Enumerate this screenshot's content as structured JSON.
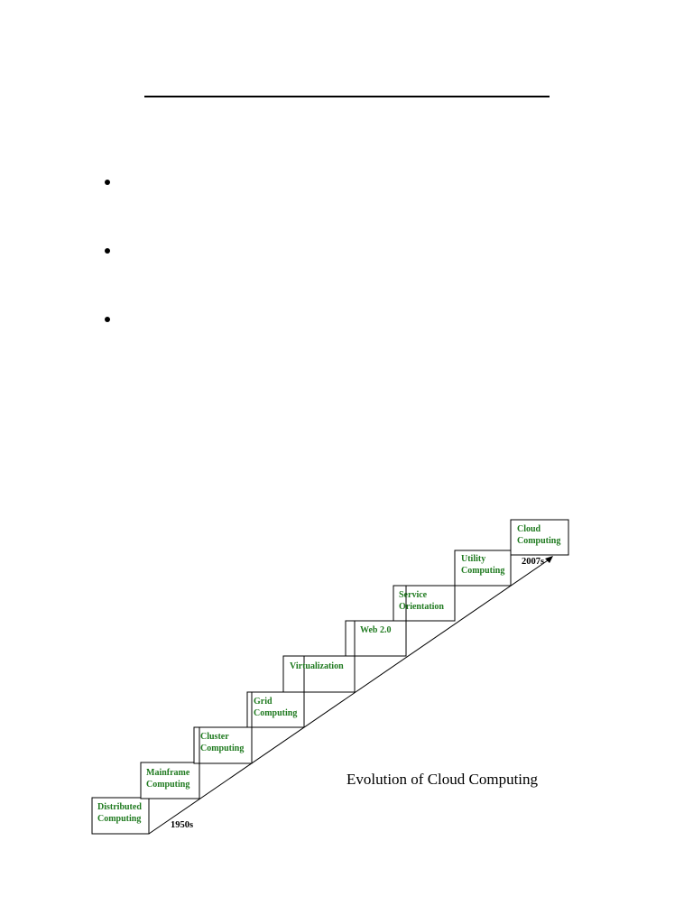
{
  "document": {
    "bullets": [
      "",
      "",
      ""
    ]
  },
  "diagram": {
    "title": "Evolution of Cloud Computing",
    "start_year": "1950s",
    "end_year": "2007s",
    "steps": [
      {
        "lines": [
          "Distributed",
          "Computing"
        ]
      },
      {
        "lines": [
          "Mainframe",
          "Computing"
        ]
      },
      {
        "lines": [
          "Cluster",
          "Computing"
        ]
      },
      {
        "lines": [
          "Grid",
          "Computing"
        ]
      },
      {
        "lines": [
          "Virtualization"
        ]
      },
      {
        "lines": [
          "Web 2.0"
        ]
      },
      {
        "lines": [
          "Service",
          "Orientation"
        ]
      },
      {
        "lines": [
          "Utility",
          "Computing"
        ]
      },
      {
        "lines": [
          "Cloud",
          "Computing"
        ]
      }
    ],
    "colors": {
      "step_text": "#1f7a1f",
      "lines": "#000000"
    }
  }
}
